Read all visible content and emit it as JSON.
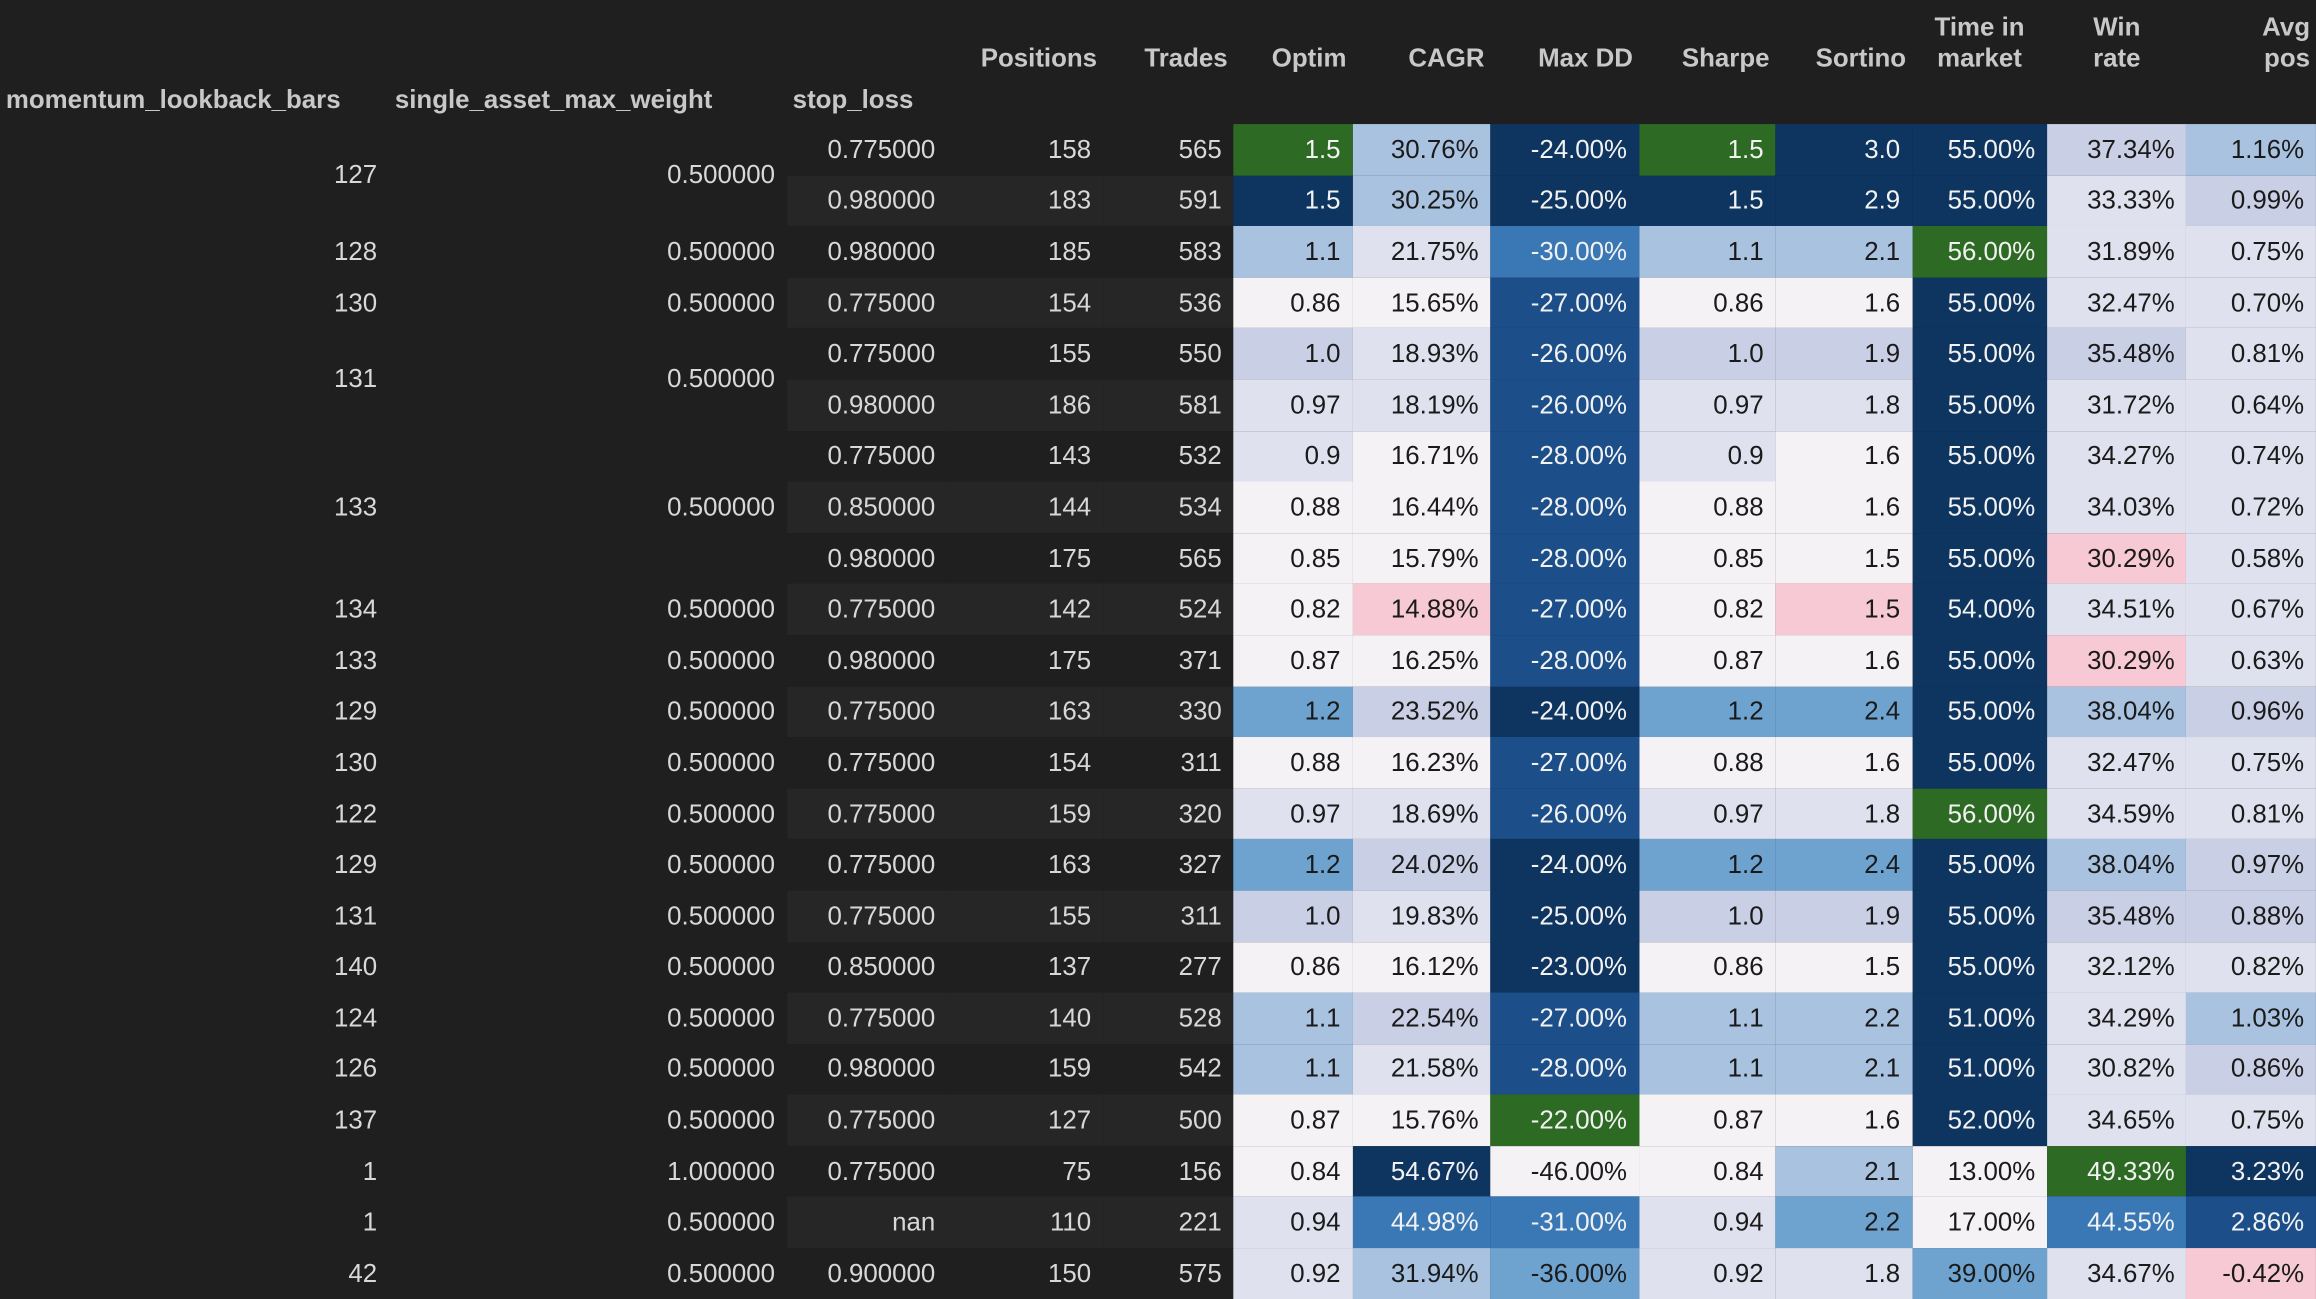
{
  "header": {
    "top": [
      "Positions",
      "Trades",
      "Optim",
      "CAGR",
      "Max DD",
      "Sharpe",
      "Sortino",
      "Time in\nmarket",
      "Win\nrate",
      "Avg\npos"
    ],
    "index": [
      "momentum_lookback_bars",
      "single_asset_max_weight",
      "stop_loss"
    ]
  },
  "colors": {
    "green": "#2d6a23",
    "navy": "#0e3460",
    "blue_dark": "#1c4f8a",
    "blue_mid": "#3a78b5",
    "blue_light": "#6ea3d0",
    "blue_pale": "#a8c2e0",
    "lavender": "#c9cfe5",
    "lavender_light": "#dfe1ee",
    "white": "#f5f2f5",
    "pink": "#f6c9d4"
  },
  "groups": [
    {
      "lookback": "127",
      "weight": "0.500000",
      "rows": [
        [
          "0.775000",
          "158",
          "565",
          [
            "1.5",
            "green"
          ],
          [
            "30.76%",
            "blue_pale"
          ],
          [
            "-24.00%",
            "navy"
          ],
          [
            "1.5",
            "green"
          ],
          [
            "3.0",
            "navy"
          ],
          [
            "55.00%",
            "navy"
          ],
          [
            "37.34%",
            "lavender"
          ],
          [
            "1.16%",
            "blue_pale"
          ]
        ],
        [
          "0.980000",
          "183",
          "591",
          [
            "1.5",
            "navy"
          ],
          [
            "30.25%",
            "blue_pale"
          ],
          [
            "-25.00%",
            "navy"
          ],
          [
            "1.5",
            "navy"
          ],
          [
            "2.9",
            "navy"
          ],
          [
            "55.00%",
            "navy"
          ],
          [
            "33.33%",
            "lavender_light"
          ],
          [
            "0.99%",
            "lavender"
          ]
        ]
      ]
    },
    {
      "lookback": "128",
      "weight": "0.500000",
      "rows": [
        [
          "0.980000",
          "185",
          "583",
          [
            "1.1",
            "blue_pale"
          ],
          [
            "21.75%",
            "lavender_light"
          ],
          [
            "-30.00%",
            "blue_mid"
          ],
          [
            "1.1",
            "blue_pale"
          ],
          [
            "2.1",
            "blue_pale"
          ],
          [
            "56.00%",
            "green"
          ],
          [
            "31.89%",
            "lavender_light"
          ],
          [
            "0.75%",
            "lavender_light"
          ]
        ]
      ]
    },
    {
      "lookback": "130",
      "weight": "0.500000",
      "rows": [
        [
          "0.775000",
          "154",
          "536",
          [
            "0.86",
            "white"
          ],
          [
            "15.65%",
            "white"
          ],
          [
            "-27.00%",
            "blue_dark"
          ],
          [
            "0.86",
            "white"
          ],
          [
            "1.6",
            "white"
          ],
          [
            "55.00%",
            "navy"
          ],
          [
            "32.47%",
            "lavender_light"
          ],
          [
            "0.70%",
            "lavender_light"
          ]
        ]
      ]
    },
    {
      "lookback": "131",
      "weight": "0.500000",
      "rows": [
        [
          "0.775000",
          "155",
          "550",
          [
            "1.0",
            "lavender"
          ],
          [
            "18.93%",
            "lavender_light"
          ],
          [
            "-26.00%",
            "blue_dark"
          ],
          [
            "1.0",
            "lavender"
          ],
          [
            "1.9",
            "lavender"
          ],
          [
            "55.00%",
            "navy"
          ],
          [
            "35.48%",
            "lavender"
          ],
          [
            "0.81%",
            "lavender_light"
          ]
        ],
        [
          "0.980000",
          "186",
          "581",
          [
            "0.97",
            "lavender_light"
          ],
          [
            "18.19%",
            "lavender_light"
          ],
          [
            "-26.00%",
            "blue_dark"
          ],
          [
            "0.97",
            "lavender_light"
          ],
          [
            "1.8",
            "lavender_light"
          ],
          [
            "55.00%",
            "navy"
          ],
          [
            "31.72%",
            "lavender_light"
          ],
          [
            "0.64%",
            "lavender_light"
          ]
        ]
      ]
    },
    {
      "lookback": "133",
      "weight": "0.500000",
      "rows": [
        [
          "0.775000",
          "143",
          "532",
          [
            "0.9",
            "lavender_light"
          ],
          [
            "16.71%",
            "white"
          ],
          [
            "-28.00%",
            "blue_dark"
          ],
          [
            "0.9",
            "lavender_light"
          ],
          [
            "1.6",
            "white"
          ],
          [
            "55.00%",
            "navy"
          ],
          [
            "34.27%",
            "lavender_light"
          ],
          [
            "0.74%",
            "lavender_light"
          ]
        ],
        [
          "0.850000",
          "144",
          "534",
          [
            "0.88",
            "white"
          ],
          [
            "16.44%",
            "white"
          ],
          [
            "-28.00%",
            "blue_dark"
          ],
          [
            "0.88",
            "white"
          ],
          [
            "1.6",
            "white"
          ],
          [
            "55.00%",
            "navy"
          ],
          [
            "34.03%",
            "lavender_light"
          ],
          [
            "0.72%",
            "lavender_light"
          ]
        ],
        [
          "0.980000",
          "175",
          "565",
          [
            "0.85",
            "white"
          ],
          [
            "15.79%",
            "white"
          ],
          [
            "-28.00%",
            "blue_dark"
          ],
          [
            "0.85",
            "white"
          ],
          [
            "1.5",
            "white"
          ],
          [
            "55.00%",
            "navy"
          ],
          [
            "30.29%",
            "pink"
          ],
          [
            "0.58%",
            "lavender_light"
          ]
        ]
      ]
    },
    {
      "lookback": "134",
      "weight": "0.500000",
      "rows": [
        [
          "0.775000",
          "142",
          "524",
          [
            "0.82",
            "white"
          ],
          [
            "14.88%",
            "pink"
          ],
          [
            "-27.00%",
            "blue_dark"
          ],
          [
            "0.82",
            "white"
          ],
          [
            "1.5",
            "pink"
          ],
          [
            "54.00%",
            "navy"
          ],
          [
            "34.51%",
            "lavender_light"
          ],
          [
            "0.67%",
            "lavender_light"
          ]
        ]
      ]
    },
    {
      "lookback": "133",
      "weight": "0.500000",
      "rows": [
        [
          "0.980000",
          "175",
          "371",
          [
            "0.87",
            "white"
          ],
          [
            "16.25%",
            "white"
          ],
          [
            "-28.00%",
            "blue_dark"
          ],
          [
            "0.87",
            "white"
          ],
          [
            "1.6",
            "white"
          ],
          [
            "55.00%",
            "navy"
          ],
          [
            "30.29%",
            "pink"
          ],
          [
            "0.63%",
            "lavender_light"
          ]
        ]
      ]
    },
    {
      "lookback": "129",
      "weight": "0.500000",
      "rows": [
        [
          "0.775000",
          "163",
          "330",
          [
            "1.2",
            "blue_light"
          ],
          [
            "23.52%",
            "lavender"
          ],
          [
            "-24.00%",
            "navy"
          ],
          [
            "1.2",
            "blue_light"
          ],
          [
            "2.4",
            "blue_light"
          ],
          [
            "55.00%",
            "navy"
          ],
          [
            "38.04%",
            "blue_pale"
          ],
          [
            "0.96%",
            "lavender"
          ]
        ]
      ]
    },
    {
      "lookback": "130",
      "weight": "0.500000",
      "rows": [
        [
          "0.775000",
          "154",
          "311",
          [
            "0.88",
            "white"
          ],
          [
            "16.23%",
            "white"
          ],
          [
            "-27.00%",
            "blue_dark"
          ],
          [
            "0.88",
            "white"
          ],
          [
            "1.6",
            "white"
          ],
          [
            "55.00%",
            "navy"
          ],
          [
            "32.47%",
            "lavender_light"
          ],
          [
            "0.75%",
            "lavender_light"
          ]
        ]
      ]
    },
    {
      "lookback": "122",
      "weight": "0.500000",
      "rows": [
        [
          "0.775000",
          "159",
          "320",
          [
            "0.97",
            "lavender_light"
          ],
          [
            "18.69%",
            "lavender_light"
          ],
          [
            "-26.00%",
            "blue_dark"
          ],
          [
            "0.97",
            "lavender_light"
          ],
          [
            "1.8",
            "lavender_light"
          ],
          [
            "56.00%",
            "green"
          ],
          [
            "34.59%",
            "lavender_light"
          ],
          [
            "0.81%",
            "lavender_light"
          ]
        ]
      ]
    },
    {
      "lookback": "129",
      "weight": "0.500000",
      "rows": [
        [
          "0.775000",
          "163",
          "327",
          [
            "1.2",
            "blue_light"
          ],
          [
            "24.02%",
            "lavender"
          ],
          [
            "-24.00%",
            "navy"
          ],
          [
            "1.2",
            "blue_light"
          ],
          [
            "2.4",
            "blue_light"
          ],
          [
            "55.00%",
            "navy"
          ],
          [
            "38.04%",
            "blue_pale"
          ],
          [
            "0.97%",
            "lavender"
          ]
        ]
      ]
    },
    {
      "lookback": "131",
      "weight": "0.500000",
      "rows": [
        [
          "0.775000",
          "155",
          "311",
          [
            "1.0",
            "lavender"
          ],
          [
            "19.83%",
            "lavender_light"
          ],
          [
            "-25.00%",
            "navy"
          ],
          [
            "1.0",
            "lavender"
          ],
          [
            "1.9",
            "lavender"
          ],
          [
            "55.00%",
            "navy"
          ],
          [
            "35.48%",
            "lavender"
          ],
          [
            "0.88%",
            "lavender"
          ]
        ]
      ]
    },
    {
      "lookback": "140",
      "weight": "0.500000",
      "rows": [
        [
          "0.850000",
          "137",
          "277",
          [
            "0.86",
            "white"
          ],
          [
            "16.12%",
            "white"
          ],
          [
            "-23.00%",
            "navy"
          ],
          [
            "0.86",
            "white"
          ],
          [
            "1.5",
            "white"
          ],
          [
            "55.00%",
            "navy"
          ],
          [
            "32.12%",
            "lavender_light"
          ],
          [
            "0.82%",
            "lavender_light"
          ]
        ]
      ]
    },
    {
      "lookback": "124",
      "weight": "0.500000",
      "rows": [
        [
          "0.775000",
          "140",
          "528",
          [
            "1.1",
            "blue_pale"
          ],
          [
            "22.54%",
            "lavender"
          ],
          [
            "-27.00%",
            "blue_dark"
          ],
          [
            "1.1",
            "blue_pale"
          ],
          [
            "2.2",
            "blue_pale"
          ],
          [
            "51.00%",
            "navy"
          ],
          [
            "34.29%",
            "lavender_light"
          ],
          [
            "1.03%",
            "blue_pale"
          ]
        ]
      ]
    },
    {
      "lookback": "126",
      "weight": "0.500000",
      "rows": [
        [
          "0.980000",
          "159",
          "542",
          [
            "1.1",
            "blue_pale"
          ],
          [
            "21.58%",
            "lavender_light"
          ],
          [
            "-28.00%",
            "blue_dark"
          ],
          [
            "1.1",
            "blue_pale"
          ],
          [
            "2.1",
            "blue_pale"
          ],
          [
            "51.00%",
            "navy"
          ],
          [
            "30.82%",
            "lavender_light"
          ],
          [
            "0.86%",
            "lavender"
          ]
        ]
      ]
    },
    {
      "lookback": "137",
      "weight": "0.500000",
      "rows": [
        [
          "0.775000",
          "127",
          "500",
          [
            "0.87",
            "white"
          ],
          [
            "15.76%",
            "white"
          ],
          [
            "-22.00%",
            "green"
          ],
          [
            "0.87",
            "white"
          ],
          [
            "1.6",
            "white"
          ],
          [
            "52.00%",
            "navy"
          ],
          [
            "34.65%",
            "lavender_light"
          ],
          [
            "0.75%",
            "lavender_light"
          ]
        ]
      ]
    },
    {
      "lookback": "1",
      "weight": "1.000000",
      "rows": [
        [
          "0.775000",
          "75",
          "156",
          [
            "0.84",
            "white"
          ],
          [
            "54.67%",
            "navy"
          ],
          [
            "-46.00%",
            "white"
          ],
          [
            "0.84",
            "white"
          ],
          [
            "2.1",
            "blue_pale"
          ],
          [
            "13.00%",
            "white"
          ],
          [
            "49.33%",
            "green"
          ],
          [
            "3.23%",
            "navy"
          ]
        ]
      ]
    },
    {
      "lookback": "1",
      "weight": "0.500000",
      "rows": [
        [
          "nan",
          "110",
          "221",
          [
            "0.94",
            "lavender_light"
          ],
          [
            "44.98%",
            "blue_mid"
          ],
          [
            "-31.00%",
            "blue_mid"
          ],
          [
            "0.94",
            "lavender_light"
          ],
          [
            "2.2",
            "blue_light"
          ],
          [
            "17.00%",
            "white"
          ],
          [
            "44.55%",
            "blue_mid"
          ],
          [
            "2.86%",
            "blue_dark"
          ]
        ]
      ]
    },
    {
      "lookback": "42",
      "weight": "0.500000",
      "rows": [
        [
          "0.900000",
          "150",
          "575",
          [
            "0.92",
            "lavender_light"
          ],
          [
            "31.94%",
            "blue_pale"
          ],
          [
            "-36.00%",
            "blue_light"
          ],
          [
            "0.92",
            "lavender_light"
          ],
          [
            "1.8",
            "lavender_light"
          ],
          [
            "39.00%",
            "blue_light"
          ],
          [
            "34.67%",
            "lavender_light"
          ],
          [
            "-0.42%",
            "pink"
          ]
        ]
      ]
    }
  ]
}
